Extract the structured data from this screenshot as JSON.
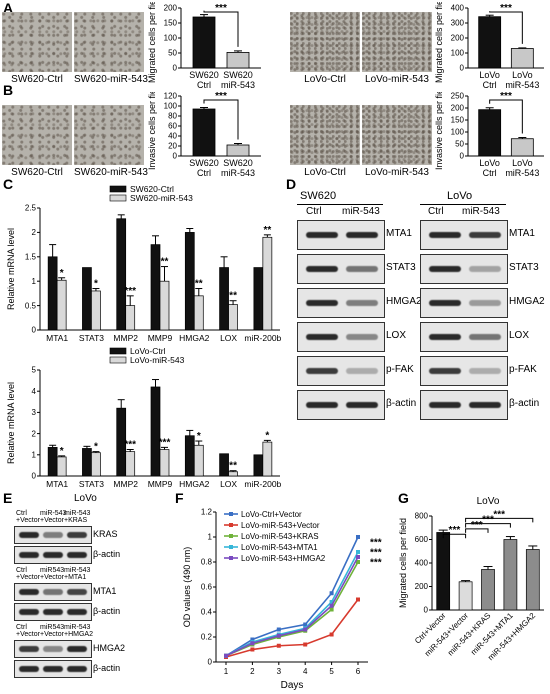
{
  "panel_labels": [
    "A",
    "B",
    "C",
    "D",
    "E",
    "F",
    "G"
  ],
  "panelA": {
    "images": [
      "SW620-Ctrl",
      "SW620-miR-543",
      "LoVo-Ctrl",
      "LoVo-miR-543"
    ],
    "sig": "***"
  },
  "panelB": {
    "images": [
      "SW620-Ctrl",
      "SW620-miR-543",
      "LoVo-Ctrl",
      "LoVo-miR-543"
    ],
    "sig": "***"
  },
  "panelD": {
    "groups": [
      "SW620",
      "LoVo"
    ],
    "lanes": [
      "Ctrl",
      "miR-543"
    ],
    "proteins": [
      "MTA1",
      "STAT3",
      "HMGA2",
      "LOX",
      "p-FAK",
      "β-actin"
    ]
  },
  "panelE": {
    "title": "LoVo",
    "blots": [
      {
        "lanes": [
          "Ctrl +Vector",
          "miR-543 +Vector",
          "miR-543 +KRAS"
        ],
        "protein": "KRAS",
        "loading": "β-actin"
      },
      {
        "lanes": [
          "Ctrl +Vector",
          "miR543 +Vector",
          "miR-543 +MTA1"
        ],
        "protein": "MTA1",
        "loading": "β-actin"
      },
      {
        "lanes": [
          "Ctrl +Vector",
          "miR543 +Vector",
          "miR-543 +HMGA2"
        ],
        "protein": "HMGA2",
        "loading": "β-actin"
      }
    ]
  },
  "chart_data": [
    {
      "id": "A-SW620",
      "type": "bar",
      "categories": [
        "SW620 Ctrl",
        "SW620 miR-543"
      ],
      "values": [
        170,
        52
      ],
      "errors": [
        8,
        5
      ],
      "colors": [
        "#111111",
        "#c8c8c8"
      ],
      "ylabel": "Migrated cells per field",
      "ylim": [
        0,
        200
      ],
      "yticks": [
        0,
        50,
        100,
        150,
        200
      ],
      "sig": "***"
    },
    {
      "id": "A-LoVo",
      "type": "bar",
      "categories": [
        "LoVo Ctrl",
        "LoVo miR-543"
      ],
      "values": [
        342,
        130
      ],
      "errors": [
        10,
        4
      ],
      "colors": [
        "#111111",
        "#c8c8c8"
      ],
      "ylabel": "Migrated cells per field",
      "ylim": [
        0,
        400
      ],
      "yticks": [
        0,
        100,
        200,
        300,
        400
      ],
      "sig": "***"
    },
    {
      "id": "B-SW620",
      "type": "bar",
      "categories": [
        "SW620 Ctrl",
        "SW620 miR-543"
      ],
      "values": [
        94,
        22
      ],
      "errors": [
        3,
        3
      ],
      "colors": [
        "#111111",
        "#c8c8c8"
      ],
      "ylabel": "Invasive cells per field",
      "ylim": [
        0,
        120
      ],
      "yticks": [
        0,
        20,
        40,
        60,
        80,
        100,
        120
      ],
      "sig": "***"
    },
    {
      "id": "B-LoVo",
      "type": "bar",
      "categories": [
        "LoVo Ctrl",
        "LoVo miR-543"
      ],
      "values": [
        193,
        72
      ],
      "errors": [
        8,
        5
      ],
      "colors": [
        "#111111",
        "#c8c8c8"
      ],
      "ylabel": "Invasive cells per field",
      "ylim": [
        0,
        250
      ],
      "yticks": [
        0,
        50,
        100,
        150,
        200,
        250
      ],
      "sig": "***"
    },
    {
      "id": "C-SW620",
      "type": "bar",
      "categories": [
        "MTA1",
        "STAT3",
        "MMP2",
        "MMP9",
        "HMGA2",
        "LOX",
        "miR-200b"
      ],
      "series": [
        {
          "name": "SW620-Ctrl",
          "color": "#111111",
          "values": [
            1.5,
            1.28,
            2.28,
            1.75,
            2.0,
            1.28,
            1.28
          ],
          "errors": [
            0.25,
            0,
            0.08,
            0.18,
            0.08,
            0.22,
            0
          ]
        },
        {
          "name": "SW620-miR-543",
          "color": "#d9d9d9",
          "values": [
            1.02,
            0.8,
            0.5,
            1.0,
            0.7,
            0.52,
            1.9
          ],
          "errors": [
            0.05,
            0.05,
            0.2,
            0.3,
            0.15,
            0.08,
            0.05
          ]
        }
      ],
      "sig": [
        "*",
        "*",
        "***",
        "**",
        "**",
        "**",
        "**"
      ],
      "ylabel": "Relative mRNA level",
      "ylim": [
        0,
        2.5
      ],
      "yticks": [
        0,
        0.5,
        1,
        1.5,
        2,
        2.5
      ]
    },
    {
      "id": "C-LoVo",
      "type": "bar",
      "categories": [
        "MTA1",
        "STAT3",
        "MMP2",
        "MMP9",
        "HMGA2",
        "LOX",
        "miR-200b"
      ],
      "series": [
        {
          "name": "LoVo-Ctrl",
          "color": "#111111",
          "values": [
            1.35,
            1.3,
            3.2,
            4.2,
            1.9,
            1.05,
            1.0
          ],
          "errors": [
            0.1,
            0.1,
            0.4,
            0.35,
            0.25,
            0,
            0
          ]
        },
        {
          "name": "LoVo-miR-543",
          "color": "#d9d9d9",
          "values": [
            0.9,
            1.1,
            1.15,
            1.25,
            1.45,
            0.2,
            1.6
          ],
          "errors": [
            0.05,
            0.05,
            0.1,
            0.1,
            0.2,
            0.05,
            0.08
          ]
        }
      ],
      "sig": [
        "*",
        "*",
        "***",
        "***",
        "*",
        "**",
        "*"
      ],
      "ylabel": "Relative mRNA level",
      "ylim": [
        0,
        5
      ],
      "yticks": [
        0,
        1,
        2,
        3,
        4,
        5
      ]
    },
    {
      "id": "F",
      "type": "line",
      "x": [
        1,
        2,
        3,
        4,
        5,
        6
      ],
      "xlabel": "Days",
      "ylabel": "OD values (490 nm)",
      "ylim": [
        0,
        1.2
      ],
      "yticks": [
        0,
        0.2,
        0.4,
        0.6,
        0.8,
        1.0,
        1.2
      ],
      "series": [
        {
          "name": "LoVo-Ctrl+Vector",
          "color": "#3a6fc4",
          "values": [
            0.05,
            0.18,
            0.26,
            0.3,
            0.55,
            1.0
          ]
        },
        {
          "name": "LoVo-miR-543+Vector",
          "color": "#d73a2e",
          "values": [
            0.04,
            0.1,
            0.13,
            0.14,
            0.22,
            0.5
          ]
        },
        {
          "name": "LoVo-miR-543+KRAS",
          "color": "#6fb23a",
          "values": [
            0.05,
            0.14,
            0.2,
            0.25,
            0.42,
            0.8
          ]
        },
        {
          "name": "LoVo-miR-543+MTA1",
          "color": "#36b6d8",
          "values": [
            0.05,
            0.16,
            0.22,
            0.27,
            0.48,
            0.88
          ]
        },
        {
          "name": "LoVo-miR-543+HMGA2",
          "color": "#7a4bc0",
          "values": [
            0.05,
            0.15,
            0.21,
            0.26,
            0.45,
            0.84
          ]
        }
      ],
      "sig": [
        "***",
        "***",
        "***"
      ]
    },
    {
      "id": "G",
      "type": "bar",
      "title": "LoVo",
      "categories": [
        "Ctrl+Vector",
        "miR-543+Vector",
        "miR-543+KRAS",
        "miR-543+MTA1",
        "miR-543+HMGA2"
      ],
      "values": [
        660,
        240,
        345,
        600,
        515
      ],
      "errors": [
        20,
        10,
        25,
        25,
        30
      ],
      "colors": [
        "#111111",
        "#dcdcdc",
        "#8c8c8c",
        "#8c8c8c",
        "#8c8c8c"
      ],
      "ylabel": "Migrated cells per field",
      "ylim": [
        0,
        800
      ],
      "yticks": [
        0,
        200,
        400,
        600,
        800
      ],
      "sig": [
        "***",
        "***",
        "***",
        "***"
      ]
    }
  ]
}
